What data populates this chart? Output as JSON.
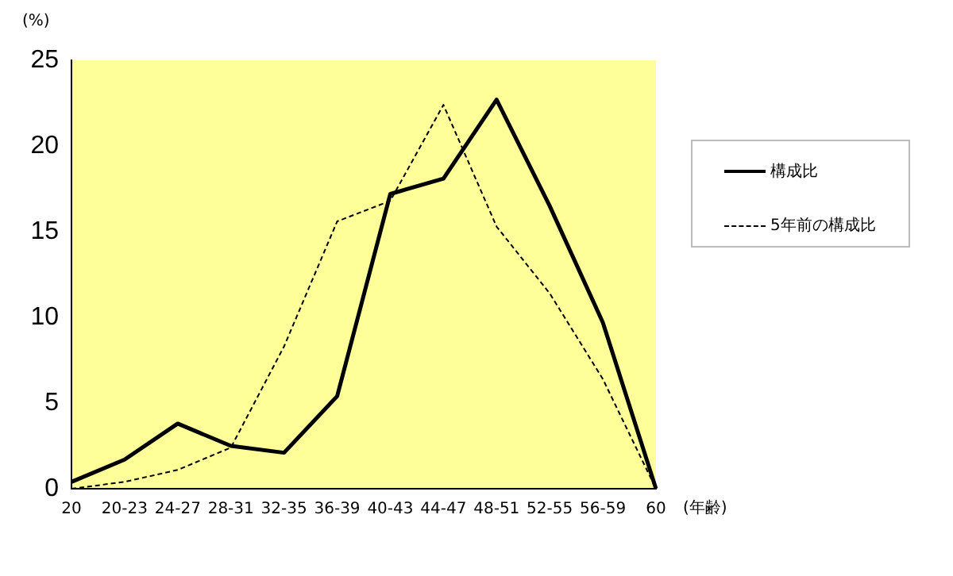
{
  "chart_data": {
    "type": "line",
    "ylabel": "(%)",
    "xlabel": "(年齢)",
    "categories": [
      "20",
      "20-23",
      "24-27",
      "28-31",
      "32-35",
      "36-39",
      "40-43",
      "44-47",
      "48-51",
      "52-55",
      "56-59",
      "60"
    ],
    "series": [
      {
        "name": "構成比",
        "color": "#000000",
        "line_style": "solid",
        "values": [
          0.4,
          1.7,
          3.8,
          2.5,
          2.1,
          5.4,
          17.2,
          18.1,
          22.7,
          16.5,
          9.7,
          0
        ]
      },
      {
        "name": "5年前の構成比",
        "color": "#000000",
        "line_style": "dashed",
        "values": [
          0,
          0.4,
          1.1,
          2.4,
          8.3,
          15.6,
          16.8,
          22.4,
          15.3,
          11.4,
          6.4,
          0
        ]
      }
    ],
    "ylim": [
      0,
      25
    ],
    "yticks": [
      0,
      5,
      10,
      15,
      20,
      25
    ],
    "grid": false,
    "legend": "right",
    "marker": "none"
  }
}
